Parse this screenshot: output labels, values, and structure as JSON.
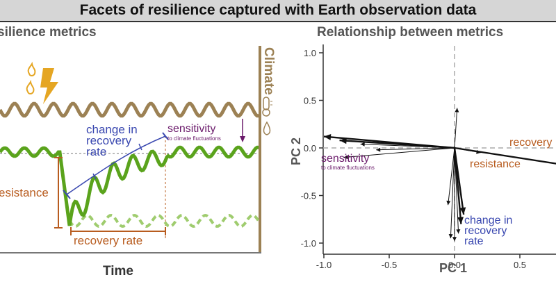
{
  "banner": {
    "title": "Facets of resilience captured with Earth observation data"
  },
  "left": {
    "heading": "silience metrics",
    "climate_label": "Climate",
    "change_label": [
      "change in",
      "recovery",
      "rate"
    ],
    "sensitivity_label": "sensitivity",
    "sensitivity_sub": "to climate fluctuations",
    "resistance_label": "esistance",
    "recovery_rate_label": "recovery rate",
    "xaxis_label": "Time",
    "colors": {
      "climate": "#9c8154",
      "vegetation": "#5aa31c",
      "vegetation_light": "#9fcc6e",
      "change": "#3a48b0",
      "sensitivity": "#6b1b6b",
      "resistance": "#b85c1f",
      "fire": "#e5a623"
    }
  },
  "right": {
    "heading": "Relationship between metrics",
    "x_axis_label": "PC 1",
    "y_axis_label": "PC 2",
    "labels": {
      "recovery": "recovery",
      "resistance": "resistance",
      "sensitivity": "sensitivity",
      "sensitivity_sub": "to climate fluctuations",
      "change": [
        "change in",
        "recovery",
        "rate"
      ]
    }
  },
  "chart_data": {
    "type": "scatter",
    "xlim": [
      -1.1,
      0.7
    ],
    "ylim": [
      -1.1,
      1.1
    ],
    "x_ticks": [
      "-1.0",
      "-0.5",
      "0.0",
      "0.5"
    ],
    "y_ticks": [
      "1.0",
      "0.5",
      "0.0",
      "-0.5",
      "-1.0"
    ],
    "vectors": [
      {
        "x": -1.0,
        "y": 0.12,
        "bold": true
      },
      {
        "x": -0.88,
        "y": 0.08,
        "bold": true
      },
      {
        "x": -0.72,
        "y": 0.04,
        "bold": false
      },
      {
        "x": -0.6,
        "y": -0.02,
        "bold": false
      },
      {
        "x": -0.85,
        "y": -0.1,
        "bold": false
      },
      {
        "x": 0.85,
        "y": -0.18,
        "bold": true
      },
      {
        "x": 0.2,
        "y": -0.05,
        "bold": false
      },
      {
        "x": 0.02,
        "y": 0.42,
        "bold": false
      },
      {
        "x": 0.05,
        "y": -0.8,
        "bold": true
      },
      {
        "x": 0.07,
        "y": -0.7,
        "bold": true
      },
      {
        "x": 0.0,
        "y": -0.98,
        "bold": false
      },
      {
        "x": -0.03,
        "y": -0.95,
        "bold": false
      },
      {
        "x": -0.05,
        "y": -0.6,
        "bold": false
      },
      {
        "x": 0.03,
        "y": -0.9,
        "bold": false
      }
    ]
  }
}
